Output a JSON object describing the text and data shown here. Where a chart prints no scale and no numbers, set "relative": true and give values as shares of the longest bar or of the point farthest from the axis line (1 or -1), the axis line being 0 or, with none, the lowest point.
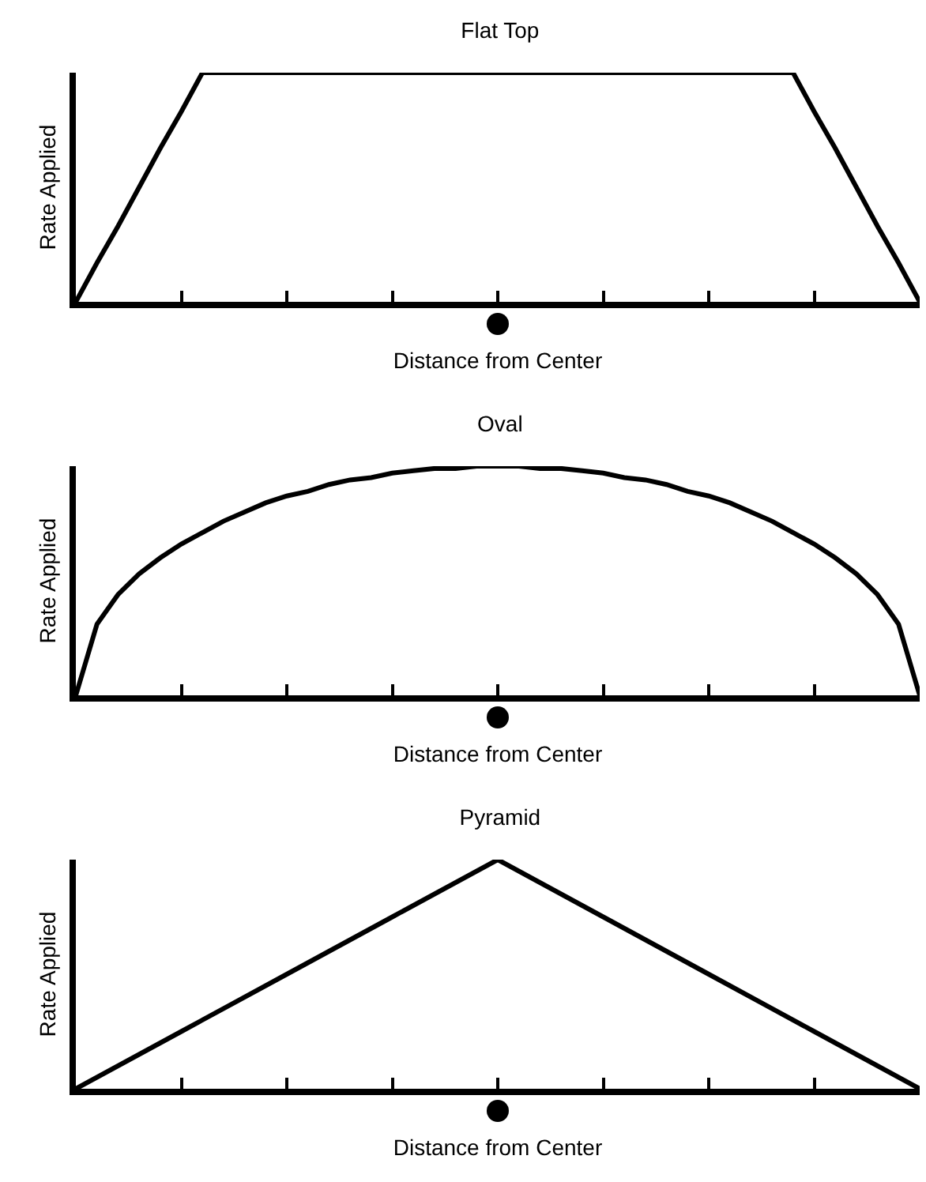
{
  "chart_data": [
    {
      "type": "line",
      "title": "Flat Top",
      "xlabel": "Distance from Center",
      "ylabel": "Rate Applied",
      "relative": true,
      "tick_labels": false,
      "categories": [
        null,
        null,
        null,
        null,
        null,
        null,
        null,
        null,
        null,
        null,
        null,
        null,
        null,
        null,
        null,
        null,
        null,
        null,
        null,
        null,
        null,
        null,
        null,
        null,
        null,
        null,
        null,
        null,
        null,
        null,
        null,
        null,
        null,
        null,
        null,
        null,
        null,
        null,
        null,
        null,
        null
      ],
      "series": [
        {
          "color": "#000000",
          "values": [
            0,
            0.17,
            0.33,
            0.5,
            0.67,
            0.83,
            1,
            1,
            1,
            1,
            1,
            1,
            1,
            1,
            1,
            1,
            1,
            1,
            1,
            1,
            1,
            1,
            1,
            1,
            1,
            1,
            1,
            1,
            1,
            1,
            1,
            1,
            1,
            1,
            1,
            0.83,
            0.67,
            0.5,
            0.33,
            0.17,
            0
          ]
        }
      ]
    },
    {
      "type": "line",
      "title": "Oval",
      "xlabel": "Distance from Center",
      "ylabel": "Rate Applied",
      "relative": true,
      "tick_labels": false,
      "categories": [
        null,
        null,
        null,
        null,
        null,
        null,
        null,
        null,
        null,
        null,
        null,
        null,
        null,
        null,
        null,
        null,
        null,
        null,
        null,
        null,
        null,
        null,
        null,
        null,
        null,
        null,
        null,
        null,
        null,
        null,
        null,
        null,
        null,
        null,
        null,
        null,
        null,
        null,
        null,
        null,
        null
      ],
      "series": [
        {
          "color": "#000000",
          "values": [
            0,
            0.31,
            0.44,
            0.53,
            0.6,
            0.66,
            0.71,
            0.76,
            0.8,
            0.84,
            0.87,
            0.89,
            0.92,
            0.94,
            0.95,
            0.97,
            0.98,
            0.99,
            0.99,
            1,
            1,
            1,
            0.99,
            0.99,
            0.98,
            0.97,
            0.95,
            0.94,
            0.92,
            0.89,
            0.87,
            0.84,
            0.8,
            0.76,
            0.71,
            0.66,
            0.6,
            0.53,
            0.44,
            0.31,
            0
          ]
        }
      ]
    },
    {
      "type": "line",
      "title": "Pyramid",
      "xlabel": "Distance from Center",
      "ylabel": "Rate Applied",
      "relative": true,
      "tick_labels": false,
      "categories": [
        null,
        null,
        null,
        null,
        null,
        null,
        null,
        null,
        null
      ],
      "series": [
        {
          "color": "#000000",
          "values": [
            0,
            0.25,
            0.5,
            0.75,
            1,
            0.75,
            0.5,
            0.25,
            0
          ]
        }
      ]
    }
  ]
}
